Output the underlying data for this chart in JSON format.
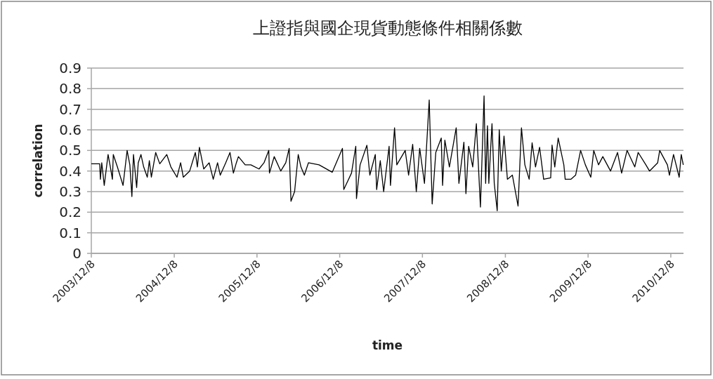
{
  "chart_data": {
    "type": "line",
    "title": "上證指與國企現貨動態條件相關係數",
    "xlabel": "time",
    "ylabel": "correlation",
    "color": "#000000",
    "grid": "y",
    "xlim": [
      "2003-12-08",
      "2011-02-02"
    ],
    "ylim": [
      0,
      0.9
    ],
    "xticks": [
      {
        "value": "2003-12-08",
        "label": "2003/12/8"
      },
      {
        "value": "2004-12-08",
        "label": "2004/12/8"
      },
      {
        "value": "2005-12-08",
        "label": "2005/12/8"
      },
      {
        "value": "2006-12-08",
        "label": "2006/12/8"
      },
      {
        "value": "2007-12-08",
        "label": "2007/12/8"
      },
      {
        "value": "2008-12-08",
        "label": "2008/12/8"
      },
      {
        "value": "2009-12-08",
        "label": "2009/12/8"
      },
      {
        "value": "2010-12-08",
        "label": "2010/12/8"
      }
    ],
    "yticks": [
      0,
      0.1,
      0.2,
      0.3,
      0.4,
      0.5,
      0.6,
      0.7,
      0.8,
      0.9
    ],
    "x": [
      "2003-12-08",
      "2004-01-14",
      "2004-01-17",
      "2004-01-23",
      "2004-02-03",
      "2004-02-20",
      "2004-03-01",
      "2004-03-10",
      "2004-03-14",
      "2004-04-01",
      "2004-04-26",
      "2004-05-14",
      "2004-05-26",
      "2004-06-04",
      "2004-06-11",
      "2004-06-25",
      "2004-07-02",
      "2004-07-14",
      "2004-07-26",
      "2004-08-11",
      "2004-08-20",
      "2004-08-29",
      "2004-09-17",
      "2004-10-05",
      "2004-11-05",
      "2004-11-23",
      "2004-12-20",
      "2005-01-05",
      "2005-01-17",
      "2005-02-14",
      "2005-03-11",
      "2005-03-20",
      "2005-03-29",
      "2005-04-17",
      "2005-05-11",
      "2005-05-29",
      "2005-06-17",
      "2005-06-29",
      "2005-07-23",
      "2005-08-11",
      "2005-08-26",
      "2005-09-08",
      "2005-09-17",
      "2005-10-17",
      "2005-11-11",
      "2005-12-17",
      "2006-01-08",
      "2006-01-29",
      "2006-02-01",
      "2006-02-22",
      "2006-03-23",
      "2006-04-14",
      "2006-04-29",
      "2006-05-07",
      "2006-05-23",
      "2006-06-08",
      "2006-06-20",
      "2006-07-05",
      "2006-07-23",
      "2006-09-08",
      "2006-11-05",
      "2006-12-20",
      "2006-12-26",
      "2007-01-29",
      "2007-02-17",
      "2007-02-20",
      "2007-03-08",
      "2007-04-07",
      "2007-04-20",
      "2007-05-14",
      "2007-05-20",
      "2007-06-05",
      "2007-06-20",
      "2007-07-14",
      "2007-07-20",
      "2007-08-07",
      "2007-08-17",
      "2007-09-23",
      "2007-10-08",
      "2007-10-26",
      "2007-11-11",
      "2007-11-26",
      "2007-12-17",
      "2008-01-07",
      "2008-01-20",
      "2008-02-05",
      "2008-02-29",
      "2008-03-06",
      "2008-03-16",
      "2008-04-05",
      "2008-05-05",
      "2008-05-17",
      "2008-06-08",
      "2008-06-17",
      "2008-06-29",
      "2008-07-17",
      "2008-08-02",
      "2008-08-20",
      "2008-09-05",
      "2008-09-12",
      "2008-09-20",
      "2008-09-26",
      "2008-10-10",
      "2008-10-20",
      "2008-11-02",
      "2008-11-11",
      "2008-11-20",
      "2008-12-02",
      "2008-12-17",
      "2009-01-08",
      "2009-02-02",
      "2009-02-17",
      "2009-03-04",
      "2009-03-23",
      "2009-04-05",
      "2009-04-20",
      "2009-05-08",
      "2009-05-26",
      "2009-06-26",
      "2009-07-02",
      "2009-07-14",
      "2009-07-29",
      "2009-08-23",
      "2009-08-29",
      "2009-09-23",
      "2009-10-14",
      "2009-11-05",
      "2009-11-26",
      "2009-12-20",
      "2010-01-02",
      "2010-01-23",
      "2010-02-11",
      "2010-03-17",
      "2010-04-17",
      "2010-05-05",
      "2010-05-29",
      "2010-07-02",
      "2010-07-17",
      "2010-08-20",
      "2010-09-05",
      "2010-10-11",
      "2010-10-20",
      "2010-11-23",
      "2010-12-02",
      "2010-12-20",
      "2011-01-14",
      "2011-01-23",
      "2011-02-01"
    ],
    "values": [
      0.435,
      0.435,
      0.36,
      0.44,
      0.33,
      0.48,
      0.42,
      0.36,
      0.48,
      0.42,
      0.33,
      0.5,
      0.43,
      0.276,
      0.48,
      0.32,
      0.44,
      0.48,
      0.42,
      0.37,
      0.45,
      0.37,
      0.49,
      0.435,
      0.48,
      0.42,
      0.37,
      0.44,
      0.37,
      0.4,
      0.49,
      0.42,
      0.515,
      0.41,
      0.44,
      0.36,
      0.44,
      0.38,
      0.44,
      0.49,
      0.39,
      0.44,
      0.47,
      0.43,
      0.43,
      0.41,
      0.44,
      0.5,
      0.39,
      0.47,
      0.4,
      0.44,
      0.51,
      0.253,
      0.3,
      0.48,
      0.42,
      0.38,
      0.44,
      0.43,
      0.394,
      0.51,
      0.31,
      0.39,
      0.52,
      0.266,
      0.43,
      0.525,
      0.38,
      0.48,
      0.31,
      0.45,
      0.3,
      0.52,
      0.33,
      0.61,
      0.43,
      0.5,
      0.38,
      0.53,
      0.3,
      0.51,
      0.34,
      0.745,
      0.24,
      0.49,
      0.56,
      0.33,
      0.55,
      0.42,
      0.61,
      0.34,
      0.54,
      0.29,
      0.52,
      0.42,
      0.63,
      0.225,
      0.765,
      0.34,
      0.62,
      0.34,
      0.63,
      0.34,
      0.207,
      0.6,
      0.4,
      0.57,
      0.36,
      0.38,
      0.23,
      0.61,
      0.43,
      0.36,
      0.537,
      0.42,
      0.515,
      0.36,
      0.367,
      0.526,
      0.42,
      0.56,
      0.43,
      0.36,
      0.36,
      0.38,
      0.5,
      0.43,
      0.37,
      0.5,
      0.43,
      0.47,
      0.4,
      0.49,
      0.39,
      0.5,
      0.42,
      0.49,
      0.43,
      0.4,
      0.44,
      0.5,
      0.43,
      0.38,
      0.48,
      0.37,
      0.48,
      0.43
    ]
  }
}
